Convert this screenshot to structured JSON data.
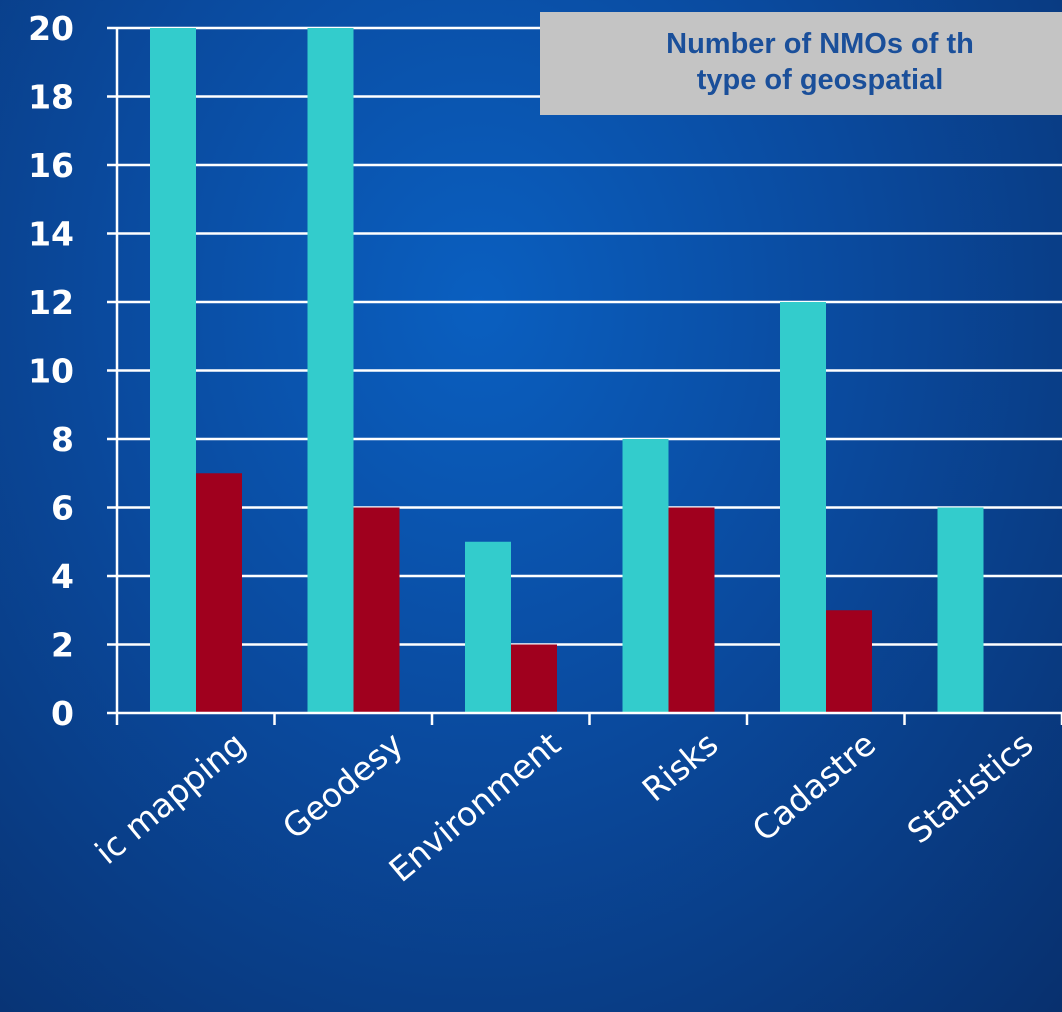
{
  "chart_data": {
    "type": "bar",
    "title_lines": [
      "Number of NMOs of th",
      "type of geospatial"
    ],
    "categories": [
      "ic mapping",
      "Geodesy",
      "Environment",
      "Risks",
      "Cadastre",
      "Statistics"
    ],
    "series": [
      {
        "values": [
          20,
          20,
          5,
          8,
          12,
          6
        ]
      },
      {
        "values": [
          7,
          6,
          2,
          6,
          3,
          0
        ]
      }
    ],
    "ylim": [
      0,
      20
    ],
    "yticks": [
      0,
      2,
      4,
      6,
      8,
      10,
      12,
      14,
      16,
      18,
      20
    ],
    "grid": true,
    "colors": {
      "series": [
        "#33cccc",
        "#a0001e"
      ],
      "axis": "#ffffff",
      "tick_label": "#ffffff",
      "category_label": "#ffffff",
      "title_bg": "#c4c4c4",
      "title_text": "#1a4f9a"
    }
  }
}
